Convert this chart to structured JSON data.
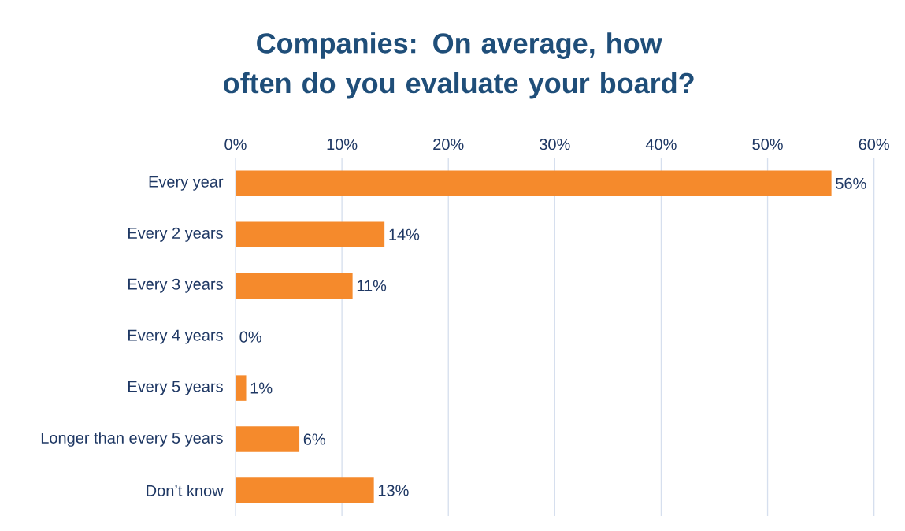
{
  "chart_data": {
    "type": "bar",
    "orientation": "horizontal",
    "title": "Companies: On average, how often do you evaluate your board?",
    "categories": [
      "Every year",
      "Every 2 years",
      "Every 3 years",
      "Every 4 years",
      "Every 5 years",
      "Longer than every 5 years",
      "Don’t know"
    ],
    "values": [
      56,
      14,
      11,
      0,
      1,
      6,
      13
    ],
    "value_labels": [
      "56%",
      "14%",
      "11%",
      "0%",
      "1%",
      "6%",
      "13%"
    ],
    "color": "#f58a2c",
    "xlim": [
      0,
      60
    ],
    "xticks": [
      {
        "value": 0,
        "label": "0%"
      },
      {
        "value": 10,
        "label": "10%"
      },
      {
        "value": 20,
        "label": "20%"
      },
      {
        "value": 30,
        "label": "30%"
      },
      {
        "value": 40,
        "label": "40%"
      },
      {
        "value": 50,
        "label": "50%"
      },
      {
        "value": 60,
        "label": "60%"
      }
    ],
    "grid": "x"
  }
}
